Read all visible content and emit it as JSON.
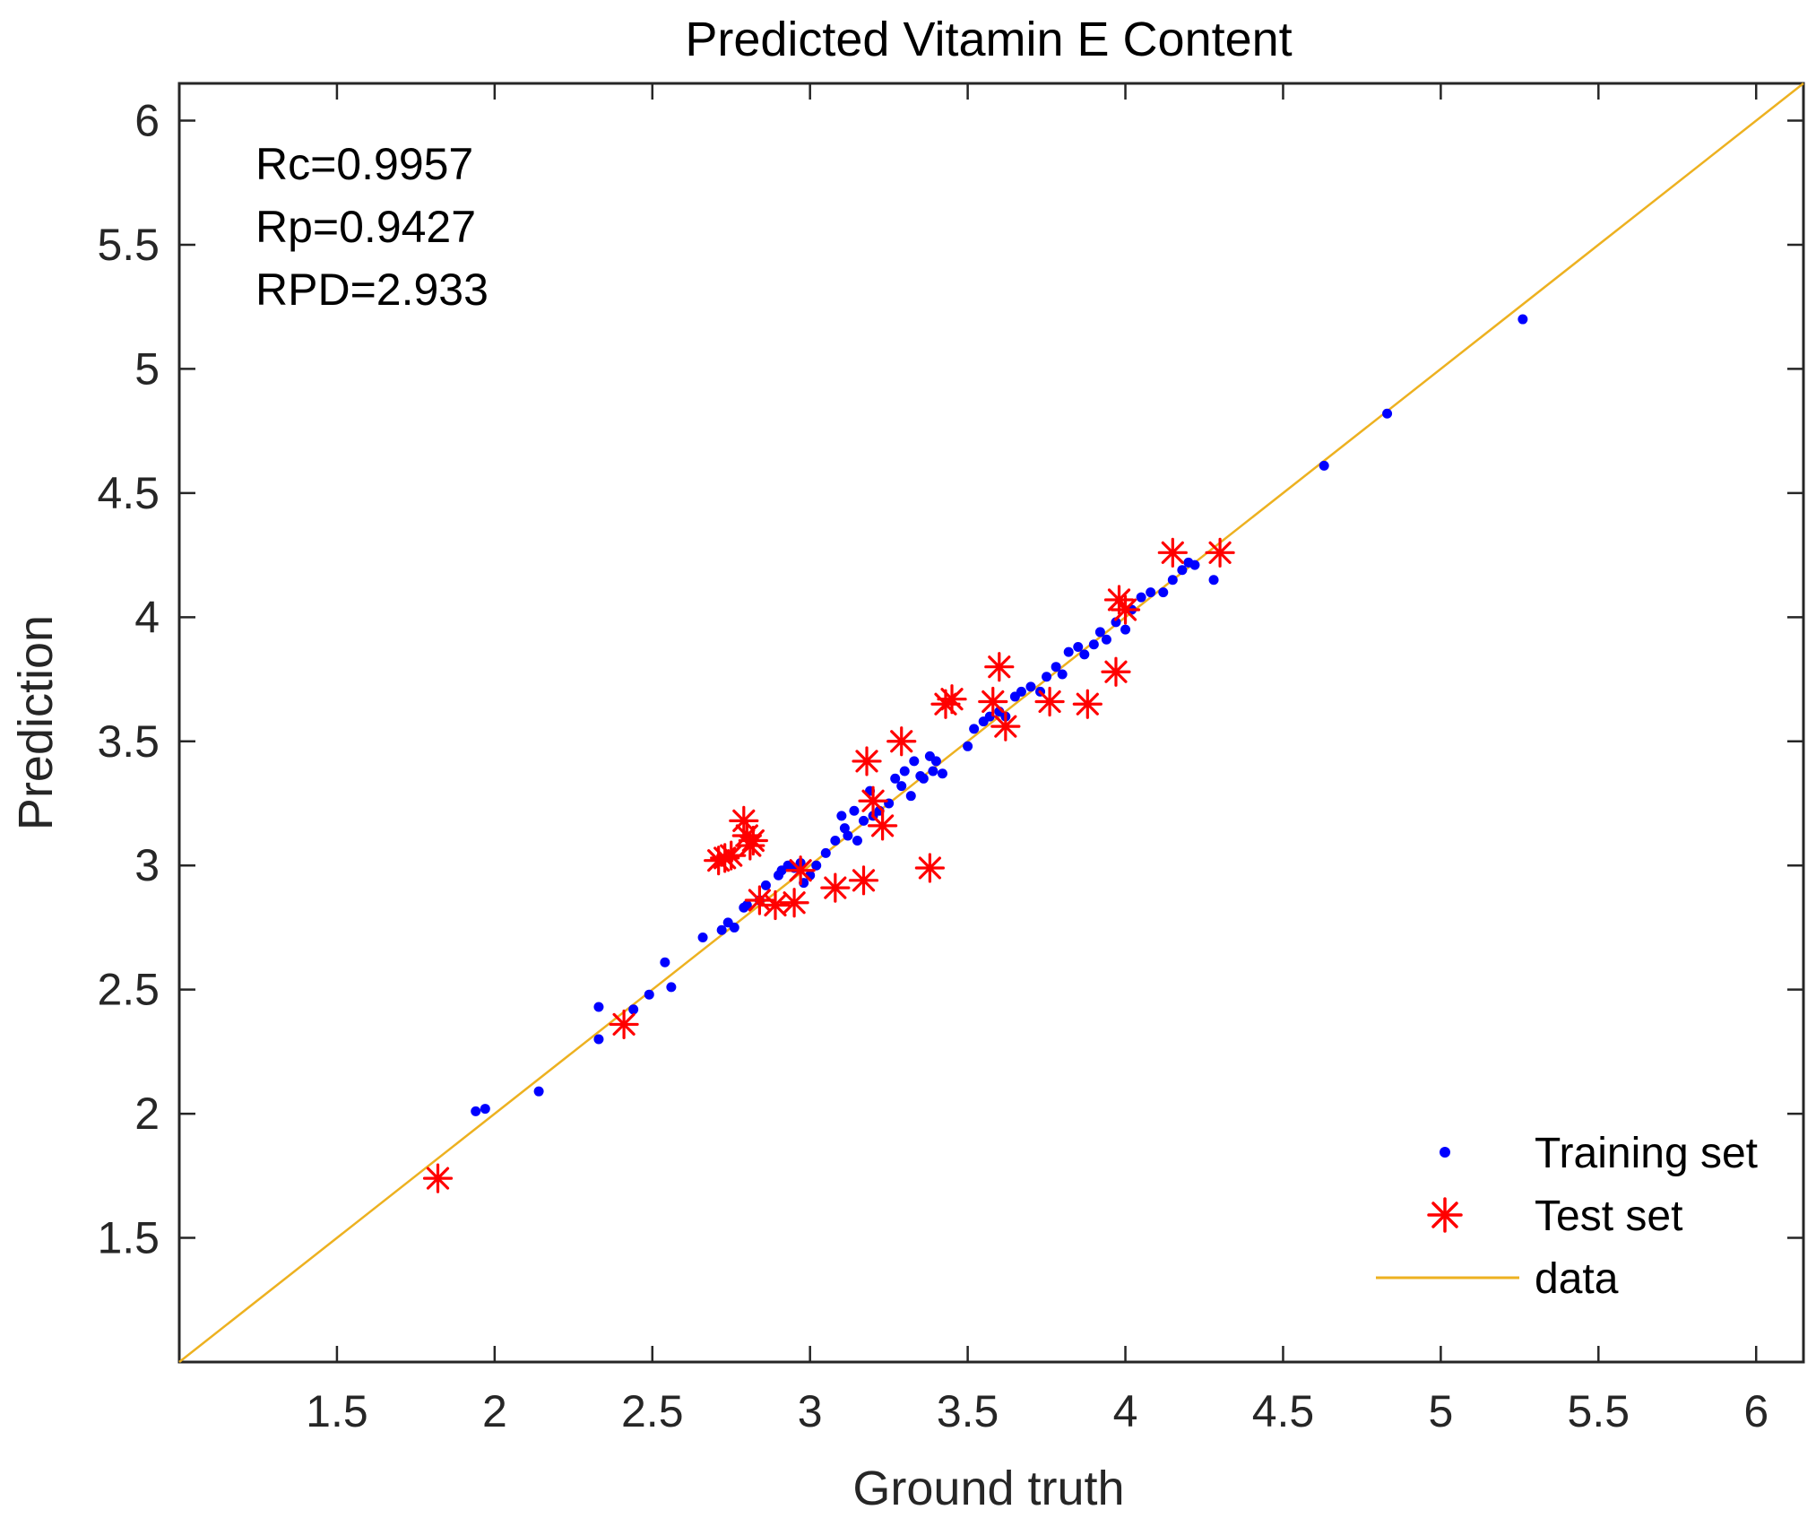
{
  "chart_data": {
    "type": "scatter",
    "title": "Predicted Vitamin E Content",
    "xlabel": "Ground truth",
    "ylabel": "Prediction",
    "xlim": [
      1.0,
      6.15
    ],
    "ylim": [
      1.0,
      6.15
    ],
    "xticks": [
      1.5,
      2,
      2.5,
      3,
      3.5,
      4,
      4.5,
      5,
      5.5,
      6
    ],
    "yticks": [
      1.5,
      2,
      2.5,
      3,
      3.5,
      4,
      4.5,
      5,
      5.5,
      6
    ],
    "xtick_labels": [
      "1.5",
      "2",
      "2.5",
      "3",
      "3.5",
      "4",
      "4.5",
      "5",
      "5.5",
      "6"
    ],
    "ytick_labels": [
      "1.5",
      "2",
      "2.5",
      "3",
      "3.5",
      "4",
      "4.5",
      "5",
      "5.5",
      "6"
    ],
    "grid": false,
    "annotations": [
      "Rc=0.9957",
      "Rp=0.9427",
      "RPD=2.933"
    ],
    "legend_position": "bottom-right",
    "series": [
      {
        "name": "Training set",
        "marker": "dot",
        "color": "#0000ff",
        "x": [
          1.94,
          1.97,
          2.14,
          2.33,
          2.33,
          2.44,
          2.49,
          2.54,
          2.56,
          2.66,
          2.72,
          2.74,
          2.76,
          2.79,
          2.8,
          2.84,
          2.86,
          2.9,
          2.91,
          2.93,
          2.95,
          2.97,
          2.98,
          3.0,
          3.02,
          3.05,
          3.08,
          3.1,
          3.11,
          3.12,
          3.14,
          3.15,
          3.17,
          3.19,
          3.2,
          3.22,
          3.25,
          3.27,
          3.29,
          3.3,
          3.32,
          3.33,
          3.35,
          3.36,
          3.38,
          3.39,
          3.4,
          3.42,
          3.5,
          3.52,
          3.55,
          3.57,
          3.6,
          3.62,
          3.65,
          3.67,
          3.7,
          3.73,
          3.75,
          3.78,
          3.8,
          3.82,
          3.85,
          3.87,
          3.9,
          3.92,
          3.94,
          3.97,
          4.0,
          4.02,
          4.05,
          4.08,
          4.12,
          4.15,
          4.18,
          4.2,
          4.22,
          4.28,
          4.63,
          4.83,
          5.26
        ],
        "y": [
          2.01,
          2.02,
          2.09,
          2.3,
          2.43,
          2.42,
          2.48,
          2.61,
          2.51,
          2.71,
          2.74,
          2.77,
          2.75,
          2.83,
          2.84,
          2.86,
          2.92,
          2.96,
          2.98,
          3.0,
          2.99,
          3.01,
          2.93,
          2.96,
          3.0,
          3.05,
          3.1,
          3.2,
          3.15,
          3.12,
          3.22,
          3.1,
          3.18,
          3.3,
          3.2,
          3.22,
          3.25,
          3.35,
          3.32,
          3.38,
          3.28,
          3.42,
          3.36,
          3.35,
          3.44,
          3.38,
          3.42,
          3.37,
          3.48,
          3.55,
          3.58,
          3.6,
          3.62,
          3.6,
          3.68,
          3.7,
          3.72,
          3.7,
          3.76,
          3.8,
          3.77,
          3.86,
          3.88,
          3.85,
          3.89,
          3.94,
          3.91,
          3.98,
          3.95,
          4.03,
          4.08,
          4.1,
          4.1,
          4.15,
          4.19,
          4.22,
          4.21,
          4.15,
          4.61,
          4.82,
          5.2
        ]
      },
      {
        "name": "Test set",
        "marker": "asterisk",
        "color": "#ff0000",
        "x": [
          1.82,
          2.41,
          2.71,
          2.73,
          2.75,
          2.79,
          2.8,
          2.81,
          2.82,
          2.84,
          2.89,
          2.95,
          2.97,
          3.08,
          3.17,
          3.18,
          3.2,
          3.23,
          3.29,
          3.38,
          3.43,
          3.45,
          3.58,
          3.6,
          3.62,
          3.76,
          3.88,
          3.97,
          3.98,
          4.0,
          4.15,
          4.3
        ],
        "y": [
          1.74,
          2.36,
          3.02,
          3.03,
          3.04,
          3.18,
          3.12,
          3.08,
          3.1,
          2.86,
          2.84,
          2.85,
          2.98,
          2.91,
          2.94,
          3.42,
          3.26,
          3.16,
          3.5,
          2.99,
          3.65,
          3.67,
          3.66,
          3.8,
          3.56,
          3.66,
          3.65,
          3.78,
          4.07,
          4.03,
          4.26,
          4.26
        ]
      },
      {
        "name": "data",
        "marker": "line",
        "color": "#edb120",
        "x": [
          1.0,
          6.15
        ],
        "y": [
          1.0,
          6.15
        ]
      }
    ]
  }
}
